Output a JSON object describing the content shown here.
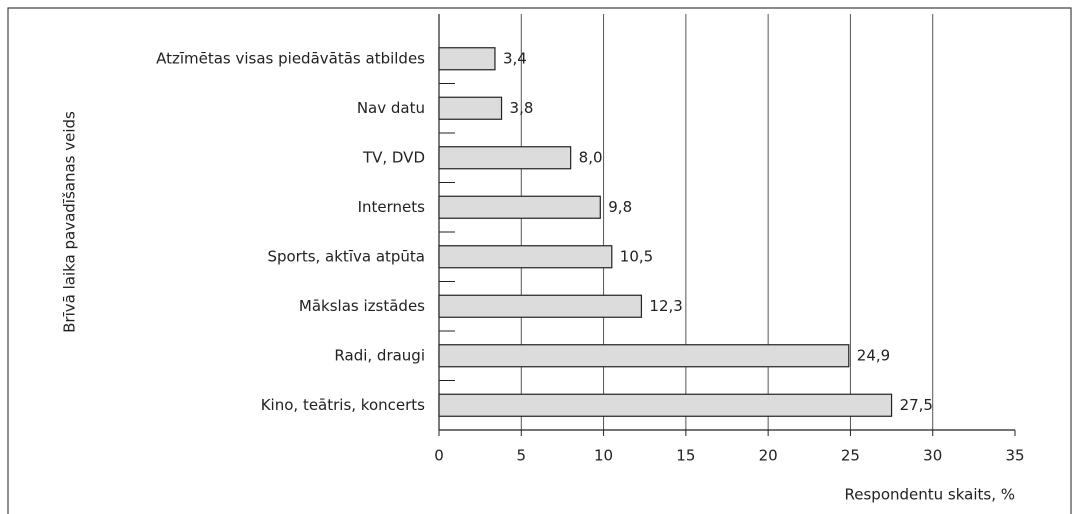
{
  "chart_data": {
    "type": "bar",
    "orientation": "horizontal",
    "categories": [
      "Atzīmētas visas piedāvātās atbildes",
      "Nav datu",
      "TV, DVD",
      "Internets",
      "Sports, aktīva atpūta",
      "Mākslas izstādes",
      "Radi, draugi",
      "Kino, teātris, koncerts"
    ],
    "values": [
      3.4,
      3.8,
      8.0,
      9.8,
      10.5,
      12.3,
      24.9,
      27.5
    ],
    "value_labels": [
      "3,4",
      "3,8",
      "8,0",
      "9,8",
      "10,5",
      "12,3",
      "24,9",
      "27,5"
    ],
    "color": "#dcdcdc",
    "xlim": [
      0,
      35
    ],
    "xticks": [
      0,
      5,
      10,
      15,
      20,
      25,
      30,
      35
    ],
    "grid": true,
    "xlabel": "Respondentu skaits, %",
    "ylabel": "Brīvā laika pavadīšanas veids"
  }
}
